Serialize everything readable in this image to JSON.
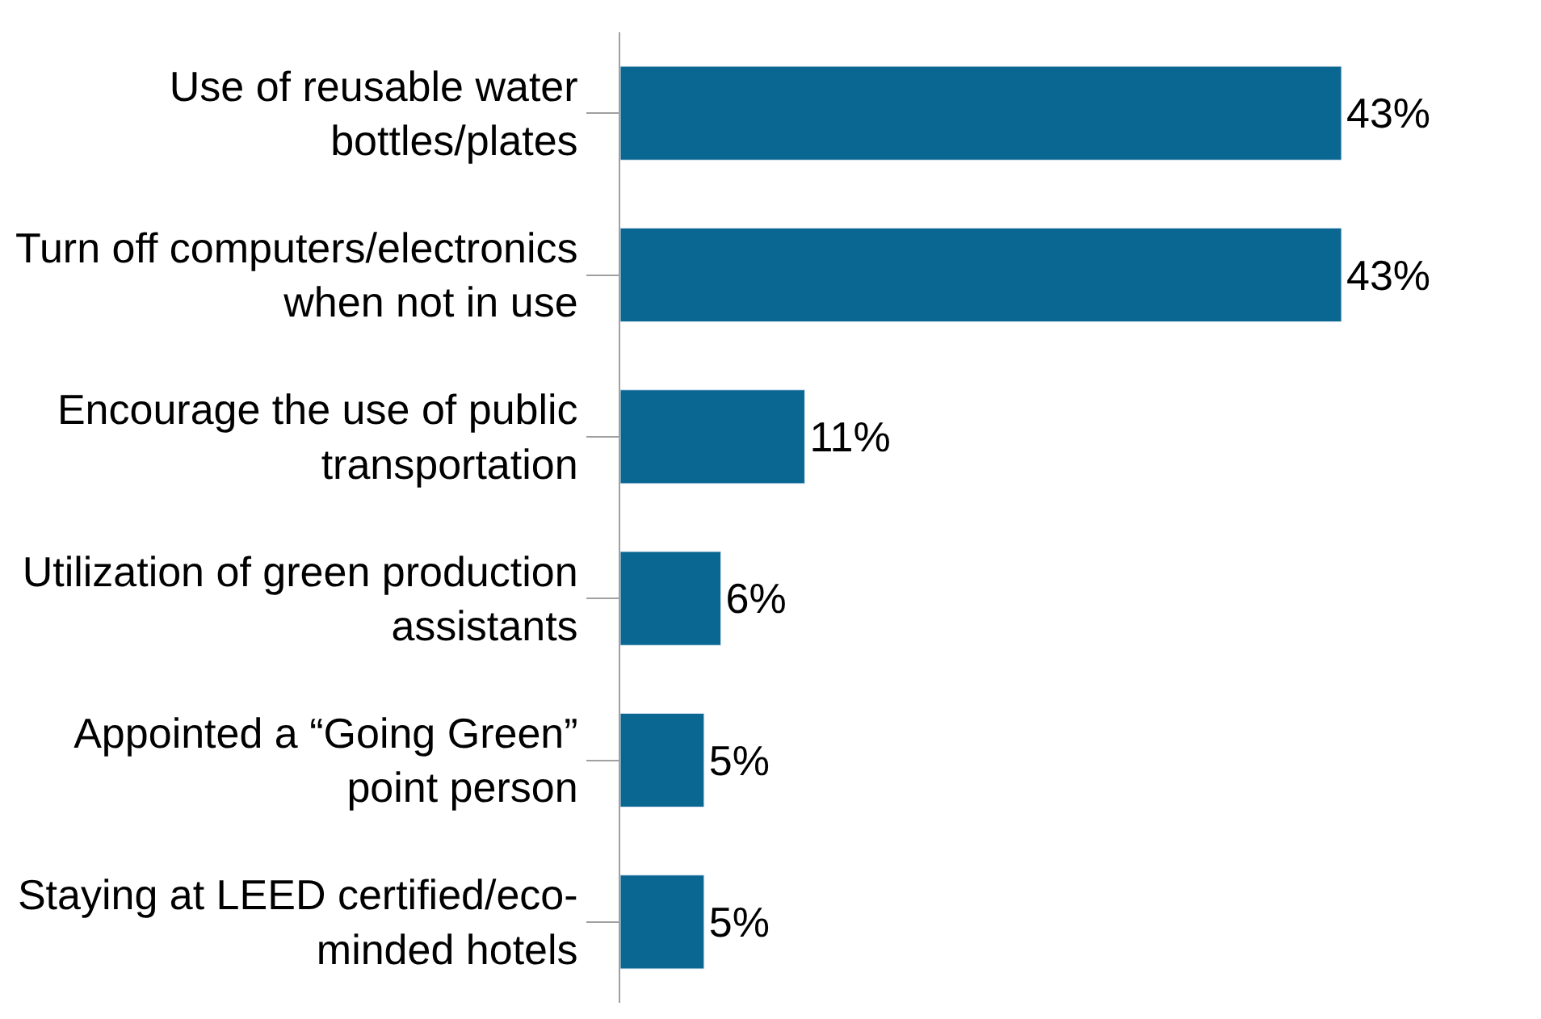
{
  "chart_data": {
    "type": "bar",
    "orientation": "horizontal",
    "categories": [
      "Use of reusable water\nbottles/plates",
      "Turn off computers/electronics\nwhen not in use",
      "Encourage the use of public\ntransportation",
      "Utilization of green production\nassistants",
      "Appointed a “Going Green”\npoint person",
      "Staying at LEED certified/eco-\nminded hotels"
    ],
    "values": [
      43,
      43,
      11,
      6,
      5,
      5
    ],
    "value_labels": [
      "43%",
      "43%",
      "11%",
      "6%",
      "5%",
      "5%"
    ],
    "color": "#0a6792",
    "tick_labels": "y"
  }
}
